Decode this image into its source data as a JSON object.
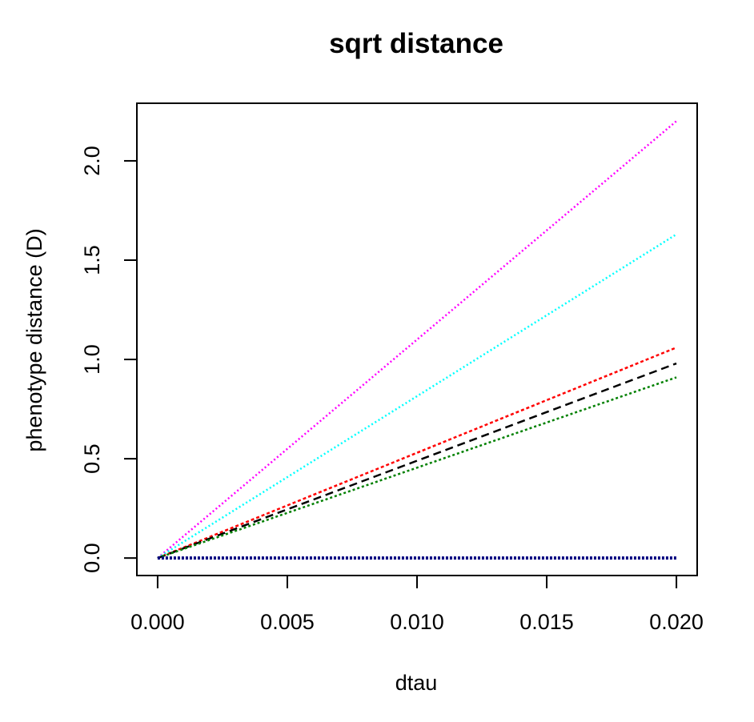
{
  "chart_data": {
    "type": "line",
    "title": "sqrt distance",
    "xlabel": "dtau",
    "ylabel": "phenotype distance (D)",
    "xlim": [
      -0.0008,
      0.0208
    ],
    "ylim": [
      -0.088,
      2.29
    ],
    "x_ticks": [
      "0.000",
      "0.005",
      "0.010",
      "0.015",
      "0.020"
    ],
    "y_ticks": [
      "0.0",
      "0.5",
      "1.0",
      "1.5",
      "2.0"
    ],
    "grid": false,
    "legend": "none",
    "x": [
      0.0,
      0.02
    ],
    "series": [
      {
        "color": "#ff00ff",
        "dash": "2,3",
        "values": [
          0.0,
          2.2
        ]
      },
      {
        "color": "#00ffff",
        "dash": "2,3",
        "values": [
          0.0,
          1.63
        ]
      },
      {
        "color": "#ff0000",
        "dash": "4,3",
        "values": [
          0.0,
          1.06
        ]
      },
      {
        "color": "#000000",
        "dash": "10,6",
        "values": [
          0.0,
          0.98
        ]
      },
      {
        "color": "#008000",
        "dash": "3,3",
        "values": [
          0.0,
          0.91
        ]
      },
      {
        "color": "#000080",
        "dash": "3,2",
        "values": [
          0.0,
          0.0
        ]
      }
    ]
  }
}
